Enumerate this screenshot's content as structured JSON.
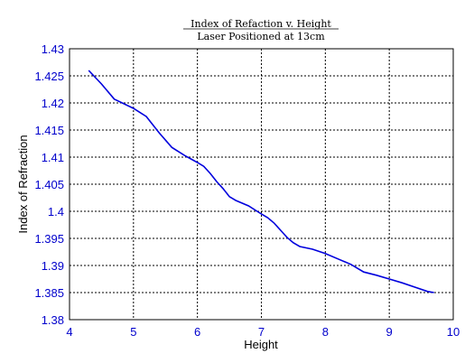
{
  "chart_data": {
    "type": "line",
    "title_line1": "Index of Refaction v. Height",
    "title_line2": "Laser Positioned at 13cm",
    "xlabel": "Height",
    "ylabel": "Index of Refraction",
    "xlim": [
      4,
      10
    ],
    "ylim": [
      1.38,
      1.43
    ],
    "x_ticks": [
      "4",
      "5",
      "6",
      "7",
      "8",
      "9",
      "10"
    ],
    "y_ticks": [
      "1.38",
      "1.385",
      "1.39",
      "1.395",
      "1.4",
      "1.405",
      "1.41",
      "1.415",
      "1.42",
      "1.425",
      "1.43"
    ],
    "grid": true,
    "series": [
      {
        "color": "#0000dd",
        "x": [
          4.3,
          4.5,
          4.7,
          5.0,
          5.2,
          5.4,
          5.6,
          5.8,
          6.0,
          6.1,
          6.2,
          6.3,
          6.4,
          6.5,
          6.6,
          6.8,
          7.0,
          7.1,
          7.2,
          7.3,
          7.4,
          7.5,
          7.6,
          7.8,
          8.0,
          8.2,
          8.4,
          8.6,
          8.8,
          9.0,
          9.2,
          9.4,
          9.6,
          9.7
        ],
        "y": [
          1.426,
          1.4235,
          1.4207,
          1.419,
          1.4175,
          1.4145,
          1.4118,
          1.4103,
          1.409,
          1.4083,
          1.407,
          1.4055,
          1.4042,
          1.4027,
          1.402,
          1.401,
          1.3995,
          1.3988,
          1.3978,
          1.3965,
          1.3952,
          1.3942,
          1.3935,
          1.393,
          1.3922,
          1.3912,
          1.3902,
          1.3888,
          1.3882,
          1.3875,
          1.3868,
          1.386,
          1.3852,
          1.385
        ]
      }
    ]
  }
}
